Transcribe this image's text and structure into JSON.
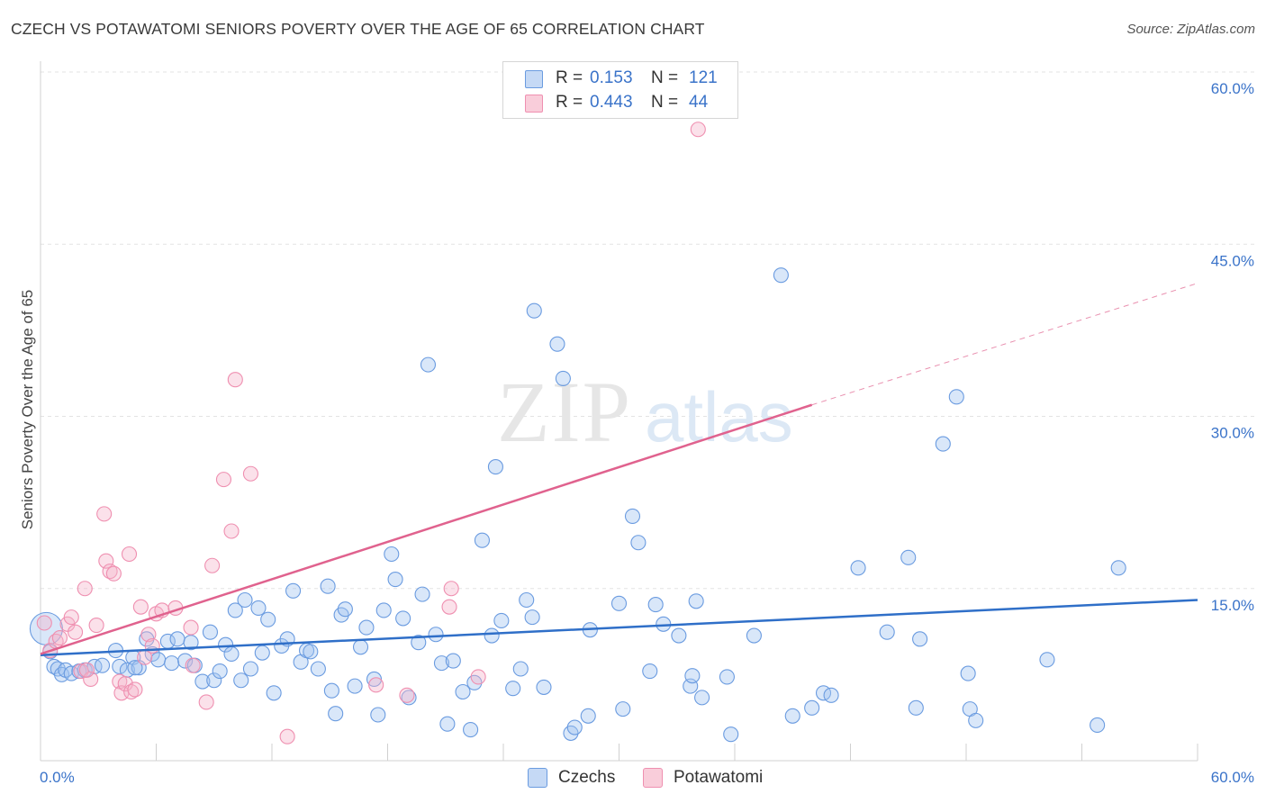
{
  "title": "CZECH VS POTAWATOMI SENIORS POVERTY OVER THE AGE OF 65 CORRELATION CHART",
  "source": "Source: ZipAtlas.com",
  "watermark": {
    "zip": "ZIP",
    "atlas": "atlas"
  },
  "colors": {
    "czech": "#6a9be0",
    "potawatomi": "#ef8fb0",
    "czech_line": "#2f6fc8",
    "potawatomi_line": "#e0628e",
    "axis_text": "#3a73c9"
  },
  "legend_top": {
    "rows": [
      {
        "r_label": "R =",
        "r_value": "0.153",
        "n_label": "N =",
        "n_value": "121"
      },
      {
        "r_label": "R =",
        "r_value": "0.443",
        "n_label": "N =",
        "n_value": "44"
      }
    ]
  },
  "legend_bottom": [
    {
      "label": "Czechs"
    },
    {
      "label": "Potawatomi"
    }
  ],
  "chart_data": {
    "type": "scatter",
    "title": "CZECH VS POTAWATOMI SENIORS POVERTY OVER THE AGE OF 65 CORRELATION CHART",
    "xlabel": "",
    "ylabel": "Seniors Poverty Over the Age of 65",
    "xlim": [
      0,
      60
    ],
    "ylim": [
      0,
      60
    ],
    "x_tick_labels": [
      "0.0%",
      "60.0%"
    ],
    "y_tick_labels": [
      "60.0%",
      "45.0%",
      "30.0%",
      "15.0%"
    ],
    "y_ticks": [
      60,
      45,
      30,
      15
    ],
    "grid": true,
    "legend_position": "top-center",
    "series": [
      {
        "name": "Czechs",
        "r": 0.153,
        "n": 121,
        "trend": {
          "x0": 0,
          "y0": 9.2,
          "x1": 60,
          "y1": 14.0
        },
        "points": [
          [
            0.3,
            11.5
          ],
          [
            0.5,
            9.5
          ],
          [
            0.7,
            8.2
          ],
          [
            0.9,
            8.0
          ],
          [
            1.1,
            7.5
          ],
          [
            1.3,
            7.9
          ],
          [
            1.6,
            7.6
          ],
          [
            2.0,
            7.8
          ],
          [
            2.3,
            7.9
          ],
          [
            2.8,
            8.2
          ],
          [
            3.2,
            8.3
          ],
          [
            3.9,
            9.6
          ],
          [
            4.1,
            8.2
          ],
          [
            4.5,
            7.9
          ],
          [
            4.8,
            9.0
          ],
          [
            5.1,
            8.1
          ],
          [
            5.5,
            10.6
          ],
          [
            5.8,
            9.3
          ],
          [
            6.1,
            8.8
          ],
          [
            6.6,
            10.4
          ],
          [
            6.8,
            8.5
          ],
          [
            7.1,
            10.6
          ],
          [
            7.5,
            8.7
          ],
          [
            7.8,
            10.3
          ],
          [
            8.0,
            8.3
          ],
          [
            8.4,
            6.9
          ],
          [
            8.8,
            11.2
          ],
          [
            9.0,
            7.0
          ],
          [
            9.3,
            7.8
          ],
          [
            9.6,
            10.1
          ],
          [
            9.9,
            9.3
          ],
          [
            10.1,
            13.1
          ],
          [
            10.4,
            7.0
          ],
          [
            10.6,
            14.0
          ],
          [
            10.9,
            8.0
          ],
          [
            11.3,
            13.3
          ],
          [
            11.5,
            9.4
          ],
          [
            11.8,
            12.3
          ],
          [
            12.1,
            5.9
          ],
          [
            12.5,
            10.0
          ],
          [
            12.8,
            10.6
          ],
          [
            13.1,
            14.8
          ],
          [
            13.5,
            8.6
          ],
          [
            13.8,
            9.6
          ],
          [
            14.0,
            9.5
          ],
          [
            14.4,
            8.0
          ],
          [
            14.9,
            15.2
          ],
          [
            15.1,
            6.1
          ],
          [
            15.3,
            4.1
          ],
          [
            15.6,
            12.7
          ],
          [
            15.8,
            13.2
          ],
          [
            16.3,
            6.5
          ],
          [
            16.6,
            9.9
          ],
          [
            16.9,
            11.6
          ],
          [
            17.3,
            7.1
          ],
          [
            17.5,
            4.0
          ],
          [
            17.8,
            13.1
          ],
          [
            18.2,
            18.0
          ],
          [
            18.4,
            15.8
          ],
          [
            18.8,
            12.4
          ],
          [
            19.1,
            5.5
          ],
          [
            19.6,
            10.3
          ],
          [
            19.8,
            14.5
          ],
          [
            20.1,
            34.5
          ],
          [
            20.5,
            11.0
          ],
          [
            20.8,
            8.5
          ],
          [
            21.1,
            3.2
          ],
          [
            21.4,
            8.7
          ],
          [
            21.9,
            6.0
          ],
          [
            22.3,
            2.7
          ],
          [
            22.5,
            6.8
          ],
          [
            22.9,
            19.2
          ],
          [
            23.4,
            10.9
          ],
          [
            23.6,
            25.6
          ],
          [
            23.9,
            12.2
          ],
          [
            24.5,
            6.3
          ],
          [
            24.9,
            8.0
          ],
          [
            25.2,
            14.0
          ],
          [
            25.5,
            12.5
          ],
          [
            25.6,
            39.2
          ],
          [
            26.1,
            6.4
          ],
          [
            26.8,
            36.3
          ],
          [
            27.1,
            33.3
          ],
          [
            27.5,
            2.4
          ],
          [
            27.7,
            2.9
          ],
          [
            28.4,
            3.9
          ],
          [
            28.5,
            11.4
          ],
          [
            30.0,
            13.7
          ],
          [
            30.2,
            4.5
          ],
          [
            30.7,
            21.3
          ],
          [
            31.0,
            19.0
          ],
          [
            31.6,
            7.8
          ],
          [
            31.9,
            13.6
          ],
          [
            32.3,
            11.9
          ],
          [
            33.1,
            10.9
          ],
          [
            33.7,
            6.5
          ],
          [
            33.8,
            7.4
          ],
          [
            34.0,
            13.9
          ],
          [
            34.3,
            5.5
          ],
          [
            35.6,
            7.3
          ],
          [
            35.8,
            2.3
          ],
          [
            37.0,
            10.9
          ],
          [
            38.4,
            42.3
          ],
          [
            39.0,
            3.9
          ],
          [
            40.0,
            4.6
          ],
          [
            40.6,
            5.9
          ],
          [
            41.0,
            5.7
          ],
          [
            42.4,
            16.8
          ],
          [
            43.9,
            11.2
          ],
          [
            45.0,
            17.7
          ],
          [
            45.4,
            4.6
          ],
          [
            45.6,
            10.6
          ],
          [
            46.8,
            27.6
          ],
          [
            47.5,
            31.7
          ],
          [
            48.1,
            7.6
          ],
          [
            48.2,
            4.5
          ],
          [
            48.5,
            3.5
          ],
          [
            52.2,
            8.8
          ],
          [
            54.8,
            3.1
          ],
          [
            55.9,
            16.8
          ],
          [
            4.9,
            8.1
          ]
        ]
      },
      {
        "name": "Potawatomi",
        "r": 0.443,
        "n": 44,
        "trend": {
          "x0": 0,
          "y0": 9.3,
          "x1": 40,
          "y1": 31.0,
          "dash_x1": 60,
          "dash_y1": 41.6
        },
        "points": [
          [
            0.2,
            12.0
          ],
          [
            0.5,
            9.6
          ],
          [
            0.8,
            10.4
          ],
          [
            1.0,
            10.7
          ],
          [
            1.4,
            11.9
          ],
          [
            1.6,
            12.5
          ],
          [
            1.8,
            11.2
          ],
          [
            2.1,
            7.8
          ],
          [
            2.3,
            15.0
          ],
          [
            2.6,
            7.1
          ],
          [
            2.9,
            11.8
          ],
          [
            3.3,
            21.5
          ],
          [
            3.4,
            17.4
          ],
          [
            3.6,
            16.5
          ],
          [
            3.8,
            16.3
          ],
          [
            4.1,
            6.9
          ],
          [
            4.2,
            5.9
          ],
          [
            4.4,
            6.7
          ],
          [
            4.6,
            18.0
          ],
          [
            4.7,
            6.0
          ],
          [
            4.9,
            6.2
          ],
          [
            5.2,
            13.4
          ],
          [
            5.4,
            9.0
          ],
          [
            5.6,
            11.0
          ],
          [
            5.8,
            10.0
          ],
          [
            6.0,
            12.8
          ],
          [
            6.3,
            13.1
          ],
          [
            7.0,
            13.3
          ],
          [
            7.8,
            11.6
          ],
          [
            7.9,
            8.3
          ],
          [
            8.6,
            5.1
          ],
          [
            8.9,
            17.0
          ],
          [
            9.5,
            24.5
          ],
          [
            9.9,
            20.0
          ],
          [
            10.1,
            33.2
          ],
          [
            10.9,
            25.0
          ],
          [
            12.8,
            2.1
          ],
          [
            17.4,
            6.6
          ],
          [
            19.0,
            5.7
          ],
          [
            21.2,
            13.4
          ],
          [
            21.3,
            15.0
          ],
          [
            22.7,
            7.3
          ],
          [
            34.1,
            55.0
          ],
          [
            2.4,
            7.9
          ]
        ]
      }
    ]
  }
}
